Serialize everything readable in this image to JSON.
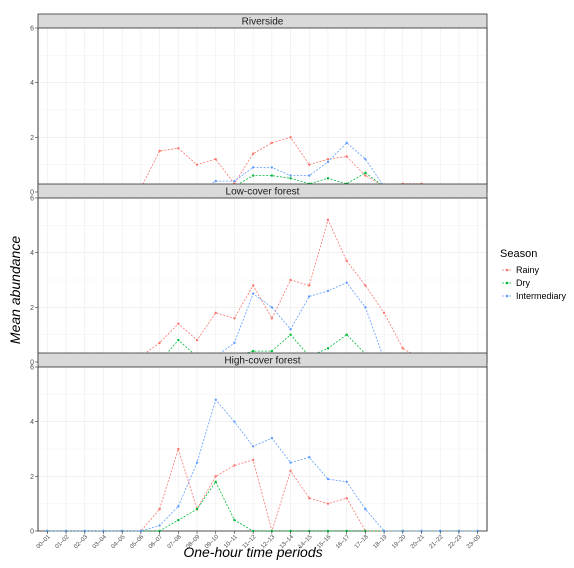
{
  "chart_data": {
    "type": "line",
    "ylabel": "Mean abundance",
    "xlabel": "One-hour time periods",
    "categories": [
      "00–01",
      "01–02",
      "02–03",
      "03–04",
      "04–05",
      "05–06",
      "06–07",
      "07–08",
      "08–09",
      "09–10",
      "10–11",
      "11–12",
      "12–13",
      "13–14",
      "14–15",
      "15–16",
      "16–17",
      "17–18",
      "18–19",
      "19–20",
      "20–21",
      "21–22",
      "22–23",
      "23–00"
    ],
    "ylim": [
      0,
      6
    ],
    "yticks": [
      0,
      2,
      4,
      6
    ],
    "grid": true,
    "legend": {
      "title": "Season",
      "placement": "right",
      "entries": [
        {
          "label": "Rainy",
          "color": "#f8766d"
        },
        {
          "label": "Dry",
          "color": "#00ba38"
        },
        {
          "label": "Intermediary",
          "color": "#619cff"
        }
      ]
    },
    "panels": [
      {
        "title": "Riverside",
        "series": [
          {
            "name": "Rainy",
            "color": "#f8766d",
            "values": [
              0,
              0,
              0,
              0,
              0,
              0.15,
              1.5,
              1.6,
              1.0,
              1.2,
              0.3,
              1.4,
              1.8,
              2.0,
              1.0,
              1.2,
              1.3,
              0.6,
              0.2,
              0.3,
              0.3,
              0,
              0.2,
              0
            ]
          },
          {
            "name": "Dry",
            "color": "#00ba38",
            "values": [
              0,
              0,
              0,
              0,
              0,
              0,
              0.2,
              0,
              0,
              0,
              0.2,
              0.6,
              0.6,
              0.5,
              0.3,
              0.5,
              0.3,
              0.7,
              0.2,
              0,
              0,
              0,
              0,
              0
            ]
          },
          {
            "name": "Intermediary",
            "color": "#619cff",
            "values": [
              0,
              0,
              0,
              0,
              0,
              0,
              0,
              0.1,
              0,
              0.4,
              0.4,
              0.9,
              0.9,
              0.6,
              0.6,
              1.1,
              1.8,
              1.2,
              0.2,
              0,
              0,
              0,
              0,
              0.1
            ]
          }
        ]
      },
      {
        "title": "Low-cover forest",
        "series": [
          {
            "name": "Rainy",
            "color": "#f8766d",
            "values": [
              0,
              0,
              0,
              0,
              0,
              0.2,
              0.7,
              1.4,
              0.8,
              1.8,
              1.6,
              2.8,
              1.6,
              3.0,
              2.8,
              5.2,
              3.7,
              2.8,
              1.8,
              0.5,
              0.1,
              0,
              0,
              0
            ]
          },
          {
            "name": "Dry",
            "color": "#00ba38",
            "values": [
              0,
              0,
              0,
              0,
              0,
              0,
              0,
              0.8,
              0.2,
              0.2,
              0.2,
              0.4,
              0.4,
              1.0,
              0.2,
              0.5,
              1.0,
              0.3,
              0,
              0.2,
              0.2,
              0,
              0,
              0
            ]
          },
          {
            "name": "Intermediary",
            "color": "#619cff",
            "values": [
              0,
              0,
              0,
              0,
              0,
              0,
              0,
              0,
              0.3,
              0.2,
              0.7,
              2.5,
              2.0,
              1.2,
              2.4,
              2.6,
              2.9,
              2.0,
              0.1,
              0.1,
              0,
              0,
              0,
              0
            ]
          }
        ]
      },
      {
        "title": "High-cover forest",
        "series": [
          {
            "name": "Rainy",
            "color": "#f8766d",
            "values": [
              0,
              0,
              0,
              0,
              0,
              0,
              0.8,
              3.0,
              0.8,
              2.0,
              2.4,
              2.6,
              0,
              2.2,
              1.2,
              1.0,
              1.2,
              0,
              0,
              0,
              0,
              0,
              0,
              0
            ]
          },
          {
            "name": "Dry",
            "color": "#00ba38",
            "values": [
              0,
              0,
              0,
              0,
              0,
              0,
              0,
              0.4,
              0.8,
              1.8,
              0.4,
              0,
              0,
              0,
              0,
              0,
              0,
              0,
              0,
              0,
              0,
              0,
              0,
              0
            ]
          },
          {
            "name": "Intermediary",
            "color": "#619cff",
            "values": [
              0,
              0,
              0,
              0,
              0,
              0,
              0.2,
              0.9,
              2.5,
              4.8,
              4.0,
              3.1,
              3.4,
              2.5,
              2.7,
              1.9,
              1.8,
              0.8,
              0,
              0,
              0,
              0,
              0,
              0
            ]
          }
        ]
      }
    ]
  }
}
